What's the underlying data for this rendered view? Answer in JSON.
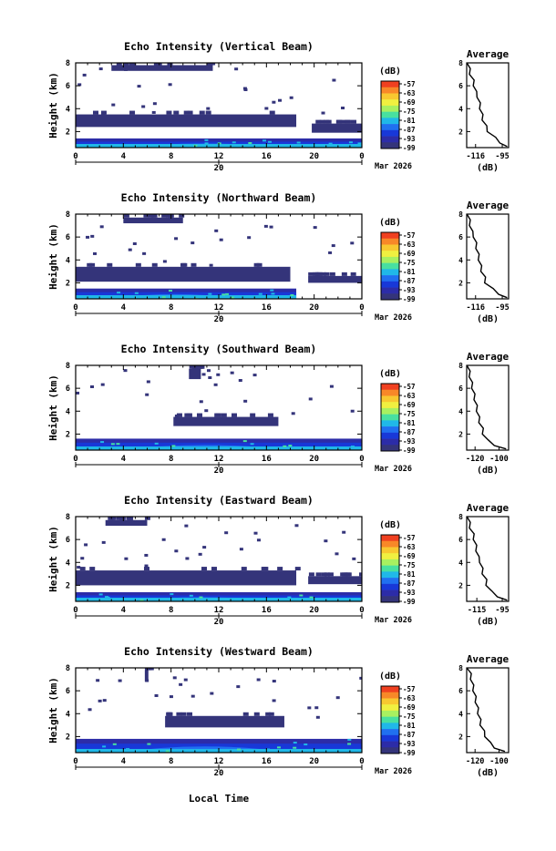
{
  "figure": {
    "xlabel": "Local Time",
    "date_label": "Mar 2026",
    "day_label": "20"
  },
  "colorbar": {
    "unit": "(dB)",
    "ticks": [
      "-57",
      "-63",
      "-69",
      "-75",
      "-81",
      "-87",
      "-93",
      "-99"
    ],
    "colors": [
      "#f04020",
      "#f88828",
      "#f8c830",
      "#f0f040",
      "#a8f060",
      "#48e0a0",
      "#20b8e8",
      "#2070f0",
      "#1838d8",
      "#2c2ca8",
      "#34347a"
    ]
  },
  "chart_data": [
    {
      "type": "heatmap",
      "title": "Echo Intensity (Vertical Beam)",
      "ylabel": "Height (km)",
      "x_ticks": [
        "0",
        "4",
        "8",
        "12",
        "16",
        "20",
        "0"
      ],
      "y_ticks": [
        "2",
        "4",
        "6",
        "8"
      ],
      "xlim": [
        0,
        24
      ],
      "ylim": [
        0.6,
        8.0
      ],
      "layers": [
        {
          "name": "dense-cloud",
          "y_bottom": 2.4,
          "y_top": 3.5,
          "x_start": 0,
          "x_end": 18.5,
          "level": -99
        },
        {
          "name": "second-cloud",
          "y_bottom": 1.9,
          "y_top": 2.7,
          "x_start": 19.8,
          "x_end": 24,
          "level": -99
        },
        {
          "name": "upper-echo",
          "y_bottom": 7.3,
          "y_top": 7.8,
          "x_start": 3.0,
          "x_end": 11.5,
          "level": -99
        },
        {
          "name": "boundary-layer",
          "y_bottom": 0.6,
          "y_top": 1.4,
          "x_start": 0,
          "x_end": 24,
          "level": -93
        }
      ],
      "average_profile": {
        "title": "Average",
        "xlabel": "(dB)",
        "x_ticks": [
          "-116",
          "-95"
        ],
        "xlim": [
          -123,
          -90
        ],
        "y_ticks": [
          "2",
          "4",
          "6",
          "8"
        ],
        "ylim": [
          0.6,
          8.0
        ],
        "heights": [
          0.7,
          1.0,
          1.5,
          2.0,
          2.5,
          3.0,
          3.5,
          4.0,
          4.5,
          5.0,
          5.5,
          6.0,
          6.5,
          7.0,
          7.5,
          8.0
        ],
        "values": [
          -92,
          -96,
          -101,
          -106,
          -108,
          -110,
          -111,
          -112,
          -113,
          -114,
          -116,
          -117,
          -118,
          -120,
          -121,
          -122
        ]
      }
    },
    {
      "type": "heatmap",
      "title": "Echo Intensity (Northward Beam)",
      "ylabel": "Height (km)",
      "x_ticks": [
        "0",
        "4",
        "8",
        "12",
        "16",
        "20",
        "0"
      ],
      "y_ticks": [
        "2",
        "4",
        "6",
        "8"
      ],
      "xlim": [
        0,
        24
      ],
      "ylim": [
        0.6,
        8.0
      ],
      "layers": [
        {
          "name": "dense-cloud",
          "y_bottom": 2.1,
          "y_top": 3.4,
          "x_start": 0,
          "x_end": 18.0,
          "level": -99
        },
        {
          "name": "second-cloud",
          "y_bottom": 2.0,
          "y_top": 2.6,
          "x_start": 19.5,
          "x_end": 24,
          "level": -99
        },
        {
          "name": "upper-echo",
          "y_bottom": 7.2,
          "y_top": 7.7,
          "x_start": 4.0,
          "x_end": 9.0,
          "level": -99
        },
        {
          "name": "boundary-layer",
          "y_bottom": 0.6,
          "y_top": 1.5,
          "x_start": 0,
          "x_end": 18.5,
          "level": -93
        }
      ],
      "average_profile": {
        "title": "Average",
        "xlabel": "(dB)",
        "x_ticks": [
          "-116",
          "-95"
        ],
        "xlim": [
          -123,
          -90
        ],
        "y_ticks": [
          "2",
          "4",
          "6",
          "8"
        ],
        "ylim": [
          0.6,
          8.0
        ],
        "heights": [
          0.7,
          1.0,
          1.5,
          2.0,
          2.5,
          3.0,
          3.5,
          4.0,
          4.5,
          5.0,
          5.5,
          6.0,
          6.5,
          7.0,
          7.5,
          8.0
        ],
        "values": [
          -92,
          -97,
          -103,
          -108,
          -109,
          -111,
          -112,
          -113,
          -114,
          -115,
          -116,
          -117,
          -119,
          -120,
          -121,
          -122
        ]
      }
    },
    {
      "type": "heatmap",
      "title": "Echo Intensity (Southward Beam)",
      "ylabel": "Height (km)",
      "x_ticks": [
        "0",
        "4",
        "8",
        "12",
        "16",
        "20",
        "0"
      ],
      "y_ticks": [
        "2",
        "4",
        "6",
        "8"
      ],
      "xlim": [
        0,
        24
      ],
      "ylim": [
        0.6,
        8.0
      ],
      "layers": [
        {
          "name": "dense-cloud",
          "y_bottom": 2.7,
          "y_top": 3.5,
          "x_start": 8.2,
          "x_end": 17.0,
          "level": -99
        },
        {
          "name": "upper-echo",
          "y_bottom": 6.8,
          "y_top": 7.7,
          "x_start": 9.5,
          "x_end": 10.5,
          "level": -99
        },
        {
          "name": "boundary-layer",
          "y_bottom": 0.6,
          "y_top": 1.6,
          "x_start": 0,
          "x_end": 24,
          "level": -93
        }
      ],
      "average_profile": {
        "title": "Average",
        "xlabel": "(dB)",
        "x_ticks": [
          "-120",
          "-100"
        ],
        "xlim": [
          -127,
          -92
        ],
        "y_ticks": [
          "2",
          "4",
          "6",
          "8"
        ],
        "ylim": [
          0.6,
          8.0
        ],
        "heights": [
          0.7,
          1.0,
          1.5,
          2.0,
          2.5,
          3.0,
          3.5,
          4.0,
          4.5,
          5.0,
          5.5,
          6.0,
          6.5,
          7.0,
          7.5,
          8.0
        ],
        "values": [
          -95,
          -103,
          -110,
          -113,
          -114,
          -116,
          -117,
          -118,
          -119,
          -120,
          -121,
          -122,
          -123,
          -124,
          -125,
          -126
        ]
      }
    },
    {
      "type": "heatmap",
      "title": "Echo Intensity (Eastward Beam)",
      "ylabel": "Height (km)",
      "x_ticks": [
        "0",
        "4",
        "8",
        "12",
        "16",
        "20",
        "0"
      ],
      "y_ticks": [
        "2",
        "4",
        "6",
        "8"
      ],
      "xlim": [
        0,
        24
      ],
      "ylim": [
        0.6,
        8.0
      ],
      "layers": [
        {
          "name": "dense-cloud",
          "y_bottom": 2.0,
          "y_top": 3.3,
          "x_start": 0,
          "x_end": 18.5,
          "level": -99
        },
        {
          "name": "second-cloud",
          "y_bottom": 2.1,
          "y_top": 2.8,
          "x_start": 19.5,
          "x_end": 24,
          "level": -99
        },
        {
          "name": "upper-echo",
          "y_bottom": 7.2,
          "y_top": 7.7,
          "x_start": 2.5,
          "x_end": 6.0,
          "level": -99
        },
        {
          "name": "boundary-layer",
          "y_bottom": 0.6,
          "y_top": 1.4,
          "x_start": 0,
          "x_end": 24,
          "level": -93
        }
      ],
      "average_profile": {
        "title": "Average",
        "xlabel": "(dB)",
        "x_ticks": [
          "-115",
          "-95"
        ],
        "xlim": [
          -123,
          -90
        ],
        "y_ticks": [
          "2",
          "4",
          "6",
          "8"
        ],
        "ylim": [
          0.6,
          8.0
        ],
        "heights": [
          0.7,
          1.0,
          1.5,
          2.0,
          2.5,
          3.0,
          3.5,
          4.0,
          4.5,
          5.0,
          5.5,
          6.0,
          6.5,
          7.0,
          7.5,
          8.0
        ],
        "values": [
          -92,
          -98,
          -104,
          -107,
          -108,
          -110,
          -111,
          -112,
          -114,
          -115,
          -116,
          -117,
          -118,
          -120,
          -121,
          -122
        ]
      }
    },
    {
      "type": "heatmap",
      "title": "Echo Intensity (Westward Beam)",
      "ylabel": "Height (km)",
      "x_ticks": [
        "0",
        "4",
        "8",
        "12",
        "16",
        "20",
        "0"
      ],
      "y_ticks": [
        "2",
        "4",
        "6",
        "8"
      ],
      "xlim": [
        0,
        24
      ],
      "ylim": [
        0.6,
        8.0
      ],
      "layers": [
        {
          "name": "dense-cloud",
          "y_bottom": 2.8,
          "y_top": 3.8,
          "x_start": 7.5,
          "x_end": 17.5,
          "level": -99
        },
        {
          "name": "upper-echo",
          "y_bottom": 6.8,
          "y_top": 7.8,
          "x_start": 5.8,
          "x_end": 6.1,
          "level": -99
        },
        {
          "name": "boundary-layer",
          "y_bottom": 0.6,
          "y_top": 1.8,
          "x_start": 0,
          "x_end": 24,
          "level": -93
        }
      ],
      "average_profile": {
        "title": "Average",
        "xlabel": "(dB)",
        "x_ticks": [
          "-120",
          "-100"
        ],
        "xlim": [
          -127,
          -92
        ],
        "y_ticks": [
          "2",
          "4",
          "6",
          "8"
        ],
        "ylim": [
          0.6,
          8.0
        ],
        "heights": [
          0.7,
          1.0,
          1.5,
          2.0,
          2.5,
          3.0,
          3.5,
          4.0,
          4.5,
          5.0,
          5.5,
          6.0,
          6.5,
          7.0,
          7.5,
          8.0
        ],
        "values": [
          -96,
          -103,
          -108,
          -111,
          -113,
          -115,
          -116,
          -117,
          -118,
          -119,
          -120,
          -121,
          -122,
          -123,
          -124,
          -126
        ]
      }
    }
  ]
}
